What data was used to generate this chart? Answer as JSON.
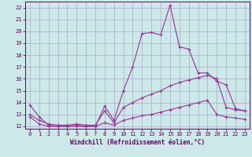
{
  "xlabel": "Windchill (Refroidissement éolien,°C)",
  "background_color": "#cce8e8",
  "grid_color": "#aaaacc",
  "line_color": "#993399",
  "xlim_min": -0.5,
  "xlim_max": 23.5,
  "ylim_min": 11.8,
  "ylim_max": 22.5,
  "xticks": [
    0,
    1,
    2,
    3,
    4,
    5,
    6,
    7,
    8,
    9,
    10,
    11,
    12,
    13,
    14,
    15,
    16,
    17,
    18,
    19,
    20,
    21,
    22,
    23
  ],
  "yticks": [
    12,
    13,
    14,
    15,
    16,
    17,
    18,
    19,
    20,
    21,
    22
  ],
  "line1_x": [
    0,
    1,
    2,
    3,
    4,
    5,
    6,
    7,
    8,
    9,
    10,
    11,
    12,
    13,
    14,
    15,
    16,
    17,
    18,
    19,
    20,
    21,
    22,
    23
  ],
  "line1_y": [
    13.8,
    12.8,
    12.1,
    12.0,
    12.0,
    12.1,
    12.0,
    12.0,
    13.7,
    12.5,
    15.0,
    17.0,
    19.8,
    19.9,
    19.7,
    22.2,
    18.7,
    18.5,
    16.5,
    16.5,
    15.8,
    15.5,
    13.5,
    13.3
  ],
  "line2_x": [
    0,
    1,
    2,
    3,
    4,
    5,
    6,
    7,
    8,
    9,
    10,
    11,
    12,
    13,
    14,
    15,
    16,
    17,
    18,
    19,
    20,
    21,
    22,
    23
  ],
  "line2_y": [
    13.0,
    12.5,
    12.2,
    12.1,
    12.1,
    12.2,
    12.1,
    12.1,
    13.3,
    12.3,
    13.6,
    14.0,
    14.4,
    14.7,
    15.0,
    15.4,
    15.7,
    15.9,
    16.1,
    16.3,
    16.0,
    13.6,
    13.4,
    13.3
  ],
  "line3_x": [
    0,
    1,
    2,
    3,
    4,
    5,
    6,
    7,
    8,
    9,
    10,
    11,
    12,
    13,
    14,
    15,
    16,
    17,
    18,
    19,
    20,
    21,
    22,
    23
  ],
  "line3_y": [
    12.8,
    12.2,
    12.0,
    12.0,
    12.0,
    12.0,
    12.0,
    12.0,
    12.3,
    12.1,
    12.5,
    12.7,
    12.9,
    13.0,
    13.2,
    13.4,
    13.6,
    13.8,
    14.0,
    14.2,
    13.0,
    12.8,
    12.7,
    12.6
  ],
  "tick_color": "#660066",
  "spine_color": "#660066",
  "label_fontsize": 5.5,
  "tick_fontsize": 5.0
}
